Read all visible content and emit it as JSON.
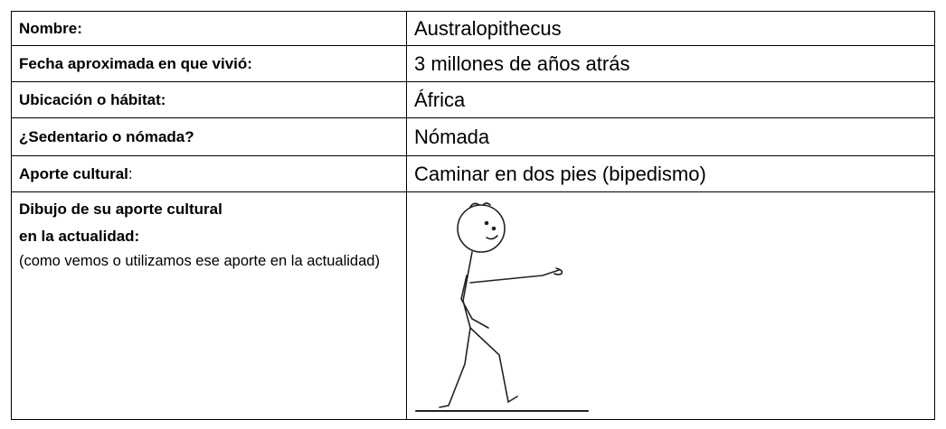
{
  "table": {
    "rows": [
      {
        "label": "Nombre:",
        "value": "Australopithecus"
      },
      {
        "label": "Fecha aproximada en que vivió:",
        "value": "3 millones de años atrás"
      },
      {
        "label": "Ubicación o hábitat:",
        "value": "África"
      },
      {
        "label": "¿Sedentario o nómada?",
        "value": "Nómada"
      },
      {
        "label": "Aporte cultural",
        "label_suffix": ":",
        "value": "Caminar en dos pies (bipedismo)"
      },
      {
        "label_lines": [
          "Dibujo de su aporte cultural",
          "en la actualidad:"
        ],
        "note": "(como vemos o utilizamos ese aporte en la actualidad)"
      }
    ]
  }
}
